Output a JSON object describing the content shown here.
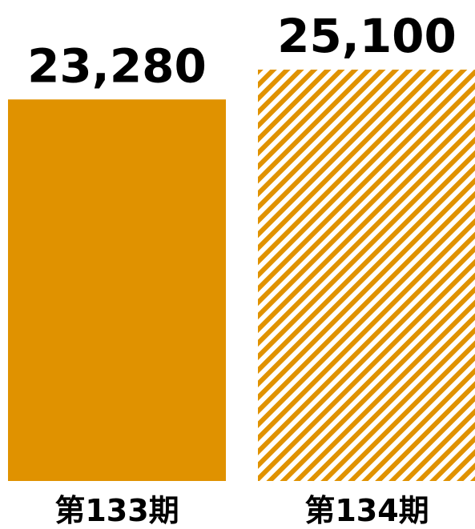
{
  "chart_data": {
    "type": "bar",
    "categories": [
      "第133期",
      "第134期"
    ],
    "values": [
      23280,
      25100
    ],
    "value_labels": [
      "23,280",
      "25,100"
    ],
    "styles": [
      "solid",
      "hatched"
    ],
    "ylim": [
      0,
      25100
    ],
    "grid": false,
    "title": "",
    "xlabel": "",
    "ylabel": ""
  },
  "colors": {
    "bar": "#E09200",
    "background": "#FFFFFF",
    "text": "#000000"
  }
}
